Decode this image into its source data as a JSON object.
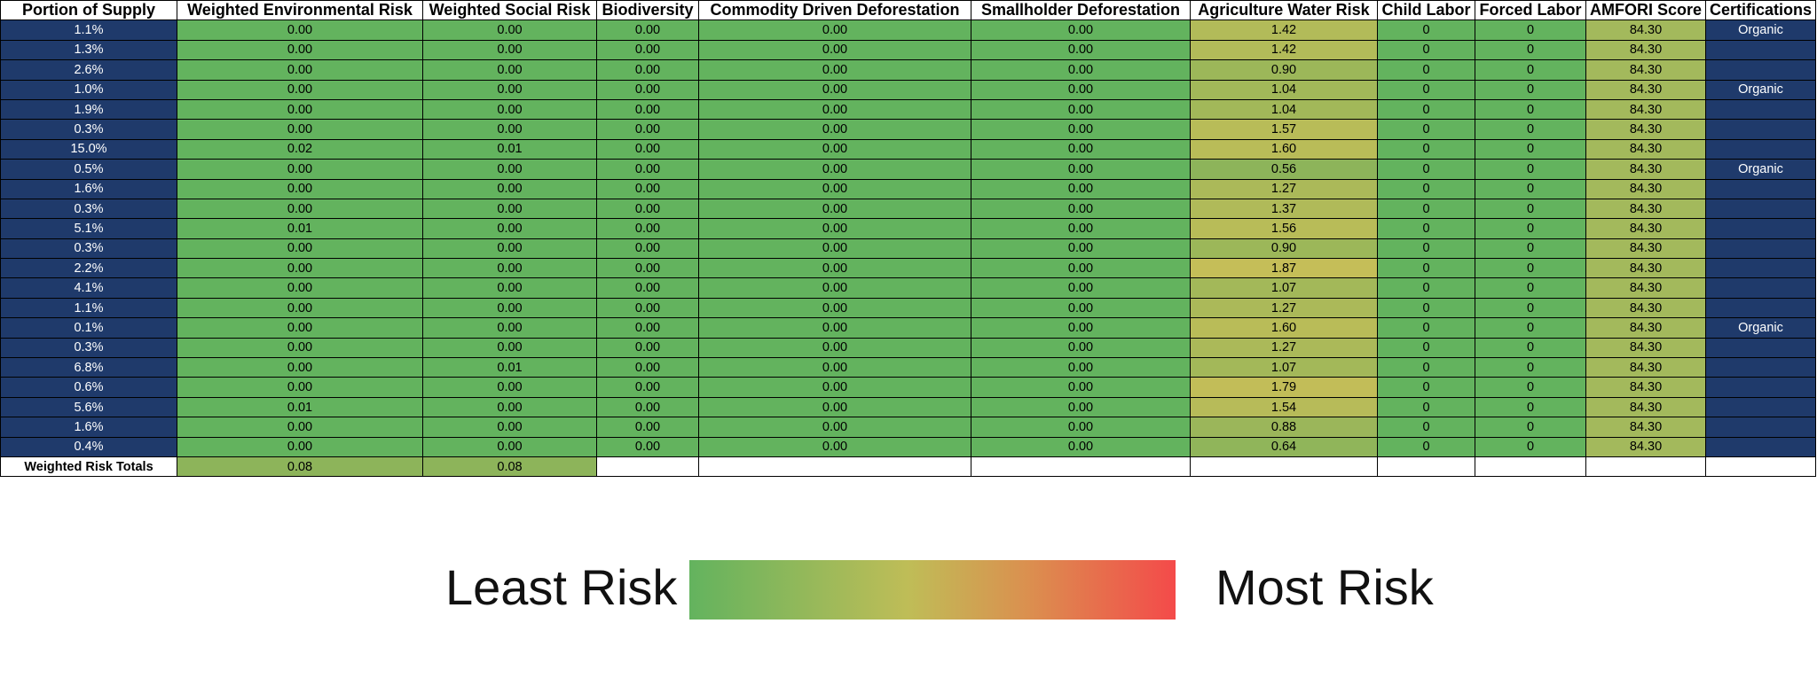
{
  "colors": {
    "navy": "#1f3a6b",
    "green": "#63b35e",
    "yellow": "#bfbd57",
    "red": "#f44a4a"
  },
  "headers": [
    "Portion of Supply",
    "Weighted Environmental Risk",
    "Weighted Social Risk",
    "Biodiversity",
    "Commodity Driven Deforestation",
    "Smallholder Deforestation",
    "Agriculture Water Risk",
    "Child Labor",
    "Forced Labor",
    "AMFORI Score",
    "Certifications"
  ],
  "rows": [
    [
      "1.1%",
      "0.00",
      "0.00",
      "0.00",
      "0.00",
      "0.00",
      "1.42",
      "0",
      "0",
      "84.30",
      "Organic"
    ],
    [
      "1.3%",
      "0.00",
      "0.00",
      "0.00",
      "0.00",
      "0.00",
      "1.42",
      "0",
      "0",
      "84.30",
      ""
    ],
    [
      "2.6%",
      "0.00",
      "0.00",
      "0.00",
      "0.00",
      "0.00",
      "0.90",
      "0",
      "0",
      "84.30",
      ""
    ],
    [
      "1.0%",
      "0.00",
      "0.00",
      "0.00",
      "0.00",
      "0.00",
      "1.04",
      "0",
      "0",
      "84.30",
      "Organic"
    ],
    [
      "1.9%",
      "0.00",
      "0.00",
      "0.00",
      "0.00",
      "0.00",
      "1.04",
      "0",
      "0",
      "84.30",
      ""
    ],
    [
      "0.3%",
      "0.00",
      "0.00",
      "0.00",
      "0.00",
      "0.00",
      "1.57",
      "0",
      "0",
      "84.30",
      ""
    ],
    [
      "15.0%",
      "0.02",
      "0.01",
      "0.00",
      "0.00",
      "0.00",
      "1.60",
      "0",
      "0",
      "84.30",
      ""
    ],
    [
      "0.5%",
      "0.00",
      "0.00",
      "0.00",
      "0.00",
      "0.00",
      "0.56",
      "0",
      "0",
      "84.30",
      "Organic"
    ],
    [
      "1.6%",
      "0.00",
      "0.00",
      "0.00",
      "0.00",
      "0.00",
      "1.27",
      "0",
      "0",
      "84.30",
      ""
    ],
    [
      "0.3%",
      "0.00",
      "0.00",
      "0.00",
      "0.00",
      "0.00",
      "1.37",
      "0",
      "0",
      "84.30",
      ""
    ],
    [
      "5.1%",
      "0.01",
      "0.00",
      "0.00",
      "0.00",
      "0.00",
      "1.56",
      "0",
      "0",
      "84.30",
      ""
    ],
    [
      "0.3%",
      "0.00",
      "0.00",
      "0.00",
      "0.00",
      "0.00",
      "0.90",
      "0",
      "0",
      "84.30",
      ""
    ],
    [
      "2.2%",
      "0.00",
      "0.00",
      "0.00",
      "0.00",
      "0.00",
      "1.87",
      "0",
      "0",
      "84.30",
      ""
    ],
    [
      "4.1%",
      "0.00",
      "0.00",
      "0.00",
      "0.00",
      "0.00",
      "1.07",
      "0",
      "0",
      "84.30",
      ""
    ],
    [
      "1.1%",
      "0.00",
      "0.00",
      "0.00",
      "0.00",
      "0.00",
      "1.27",
      "0",
      "0",
      "84.30",
      ""
    ],
    [
      "0.1%",
      "0.00",
      "0.00",
      "0.00",
      "0.00",
      "0.00",
      "1.60",
      "0",
      "0",
      "84.30",
      "Organic"
    ],
    [
      "0.3%",
      "0.00",
      "0.00",
      "0.00",
      "0.00",
      "0.00",
      "1.27",
      "0",
      "0",
      "84.30",
      ""
    ],
    [
      "6.8%",
      "0.00",
      "0.01",
      "0.00",
      "0.00",
      "0.00",
      "1.07",
      "0",
      "0",
      "84.30",
      ""
    ],
    [
      "0.6%",
      "0.00",
      "0.00",
      "0.00",
      "0.00",
      "0.00",
      "1.79",
      "0",
      "0",
      "84.30",
      ""
    ],
    [
      "5.6%",
      "0.01",
      "0.00",
      "0.00",
      "0.00",
      "0.00",
      "1.54",
      "0",
      "0",
      "84.30",
      ""
    ],
    [
      "1.6%",
      "0.00",
      "0.00",
      "0.00",
      "0.00",
      "0.00",
      "0.88",
      "0",
      "0",
      "84.30",
      ""
    ],
    [
      "0.4%",
      "0.00",
      "0.00",
      "0.00",
      "0.00",
      "0.00",
      "0.64",
      "0",
      "0",
      "84.30",
      ""
    ]
  ],
  "totals": {
    "label": "Weighted Risk Totals",
    "environmental": "0.08",
    "social": "0.08"
  },
  "legend": {
    "least": "Least Risk",
    "most": "Most Risk"
  }
}
